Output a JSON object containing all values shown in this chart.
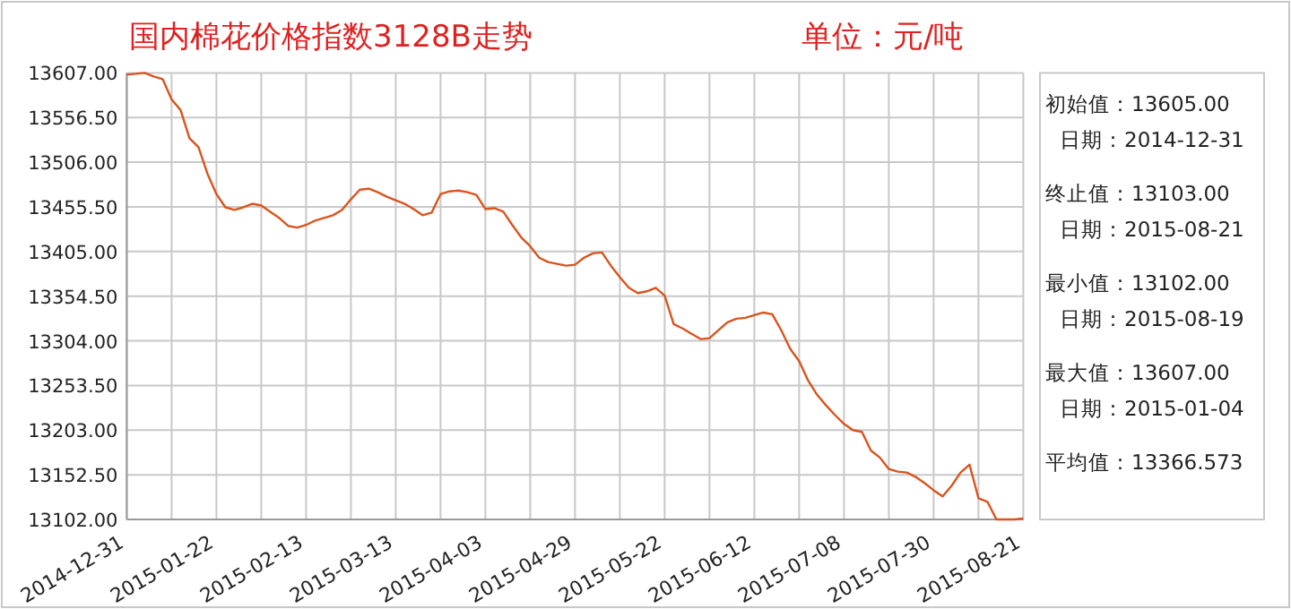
{
  "chart_data": {
    "type": "line",
    "title": "国内棉花价格指数3128B走势",
    "subtitle": "单位：元/吨",
    "annotations": [
      "初始值：13605.00",
      "日期：2014-12-31",
      "终止值：13103.00",
      "日期：2015-08-21",
      "最小值：13102.00",
      "日期：2015-08-19",
      "最大值：13607.00",
      "日期：2015-01-04",
      "平均值：13366.573"
    ],
    "color": "#d9541e",
    "grid": true,
    "ylim": [
      13102,
      13607
    ],
    "yticks": [
      {
        "value": 13102,
        "label": "13102.00"
      },
      {
        "value": 13152.5,
        "label": "13152.50"
      },
      {
        "value": 13203,
        "label": "13203.00"
      },
      {
        "value": 13253.5,
        "label": "13253.50"
      },
      {
        "value": 13304,
        "label": "13304.00"
      },
      {
        "value": 13354.5,
        "label": "13354.50"
      },
      {
        "value": 13405,
        "label": "13405.00"
      },
      {
        "value": 13455.5,
        "label": "13455.50"
      },
      {
        "value": 13506,
        "label": "13506.00"
      },
      {
        "value": 13556.5,
        "label": "13556.50"
      },
      {
        "value": 13607,
        "label": "13607.00"
      }
    ],
    "categories": [
      "2014-12-31",
      null,
      null,
      null,
      null,
      null,
      null,
      null,
      null,
      null,
      "2015-01-22",
      null,
      null,
      null,
      null,
      null,
      null,
      null,
      null,
      null,
      "2015-02-13",
      null,
      null,
      null,
      null,
      null,
      null,
      null,
      null,
      null,
      "2015-03-13",
      null,
      null,
      null,
      null,
      null,
      null,
      null,
      null,
      null,
      "2015-04-03",
      null,
      null,
      null,
      null,
      null,
      null,
      null,
      null,
      null,
      "2015-04-29",
      null,
      null,
      null,
      null,
      null,
      null,
      null,
      null,
      null,
      "2015-05-22",
      null,
      null,
      null,
      null,
      null,
      null,
      null,
      null,
      null,
      "2015-06-12",
      null,
      null,
      null,
      null,
      null,
      null,
      null,
      null,
      null,
      "2015-07-08",
      null,
      null,
      null,
      null,
      null,
      null,
      null,
      null,
      null,
      "2015-07-30",
      null,
      null,
      null,
      null,
      null,
      null,
      null,
      null,
      null,
      "2015-08-21"
    ],
    "values": [
      13605,
      13606,
      13607,
      13603,
      13600,
      13577,
      13565,
      13533,
      13523,
      13493,
      13470,
      13455,
      13452,
      13455,
      13459,
      13457,
      13450,
      13443,
      13434,
      13432,
      13435,
      13440,
      13443,
      13446,
      13452,
      13464,
      13475,
      13476,
      13472,
      13467,
      13463,
      13459,
      13453,
      13446,
      13449,
      13470,
      13473,
      13474,
      13472,
      13469,
      13453,
      13454,
      13450,
      13435,
      13421,
      13411,
      13398,
      13393,
      13391,
      13389,
      13390,
      13398,
      13403,
      13404,
      13389,
      13376,
      13364,
      13358,
      13360,
      13364,
      13355,
      13323,
      13318,
      13312,
      13306,
      13307,
      13316,
      13325,
      13329,
      13330,
      13333,
      13336,
      13334,
      13316,
      13295,
      13281,
      13259,
      13243,
      13231,
      13220,
      13210,
      13203,
      13201,
      13180,
      13172,
      13159,
      13156,
      13155,
      13150,
      13143,
      13135,
      13128,
      13140,
      13155,
      13164,
      13126,
      13122,
      13102,
      13102,
      13102,
      13103
    ]
  }
}
